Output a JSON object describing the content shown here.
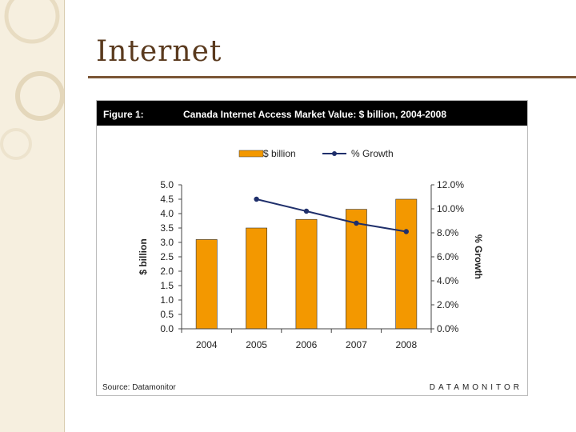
{
  "slide": {
    "title": "Internet"
  },
  "figure": {
    "label": "Figure 1:",
    "title": "Canada Internet Access Market Value: $ billion, 2004-2008",
    "source": "Source: Datamonitor",
    "brand": "DATAMONITOR"
  },
  "colors": {
    "bar": "#f39800",
    "bar_stroke": "#333333",
    "line": "#1f2f6b",
    "header_bg": "#000000",
    "title_text": "#5a3a1e",
    "accent_rule": "#7a5535",
    "strip_bg": "#f6efdf"
  },
  "chart_data": {
    "type": "bar",
    "categories": [
      "2004",
      "2005",
      "2006",
      "2007",
      "2008"
    ],
    "series": [
      {
        "name": "$ billion",
        "type": "bar",
        "axis": "left",
        "values": [
          3.1,
          3.5,
          3.8,
          4.15,
          4.5
        ]
      },
      {
        "name": "% Growth",
        "type": "line",
        "axis": "right",
        "values": [
          null,
          10.8,
          9.8,
          8.8,
          8.1
        ]
      }
    ],
    "ylabel": "$ billion",
    "y2label": "% Growth",
    "ylim": [
      0,
      5
    ],
    "y2lim": [
      0,
      12
    ],
    "yticks": [
      "0.0",
      "0.5",
      "1.0",
      "1.5",
      "2.0",
      "2.5",
      "3.0",
      "3.5",
      "4.0",
      "4.5",
      "5.0"
    ],
    "y2ticks": [
      "0.0%",
      "2.0%",
      "4.0%",
      "6.0%",
      "8.0%",
      "10.0%",
      "12.0%"
    ],
    "legend_position": "top"
  }
}
